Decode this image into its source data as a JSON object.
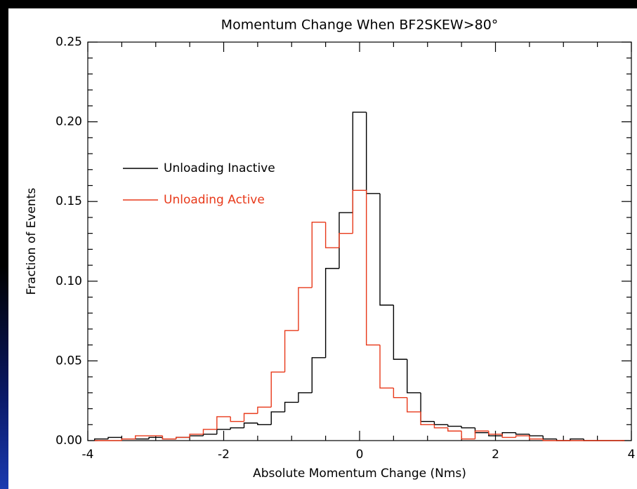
{
  "chart_data": {
    "type": "histogram",
    "title": "Momentum Change When BF2SKEW>80°",
    "xlabel": "Absolute Momentum Change (Nms)",
    "ylabel": "Fraction of Events",
    "bins": [
      -3.9,
      -3.7,
      -3.5,
      -3.3,
      -3.1,
      -2.9,
      -2.7,
      -2.5,
      -2.3,
      -2.1,
      -1.9,
      -1.7,
      -1.5,
      -1.3,
      -1.1,
      -0.9,
      -0.7,
      -0.5,
      -0.3,
      -0.1,
      0.1,
      0.3,
      0.5,
      0.7,
      0.9,
      1.1,
      1.3,
      1.5,
      1.7,
      1.9,
      2.1,
      2.3,
      2.5,
      2.7,
      2.9,
      3.1,
      3.3,
      3.5,
      3.7,
      3.9
    ],
    "series": [
      {
        "name": "Unloading Inactive",
        "color": "#000000",
        "values": [
          0.001,
          0.002,
          0.001,
          0.001,
          0.002,
          0.001,
          0.002,
          0.003,
          0.004,
          0.007,
          0.008,
          0.011,
          0.01,
          0.018,
          0.024,
          0.03,
          0.052,
          0.108,
          0.143,
          0.206,
          0.155,
          0.085,
          0.051,
          0.03,
          0.012,
          0.01,
          0.009,
          0.008,
          0.005,
          0.003,
          0.005,
          0.004,
          0.003,
          0.001,
          0.0,
          0.001,
          0.0,
          0.0,
          0.0
        ]
      },
      {
        "name": "Unloading Active",
        "color": "#e8391a",
        "values": [
          0.0,
          0.0,
          0.001,
          0.003,
          0.003,
          0.001,
          0.002,
          0.004,
          0.007,
          0.015,
          0.012,
          0.017,
          0.021,
          0.043,
          0.069,
          0.096,
          0.137,
          0.121,
          0.13,
          0.157,
          0.06,
          0.033,
          0.027,
          0.018,
          0.01,
          0.008,
          0.006,
          0.001,
          0.006,
          0.004,
          0.002,
          0.003,
          0.001,
          0.0,
          0.0,
          0.0,
          0.0,
          0.0,
          0.0
        ]
      }
    ],
    "xlim": [
      -4,
      4
    ],
    "xticks": [
      -4,
      -2,
      0,
      2,
      4
    ],
    "ylim": [
      0,
      0.25
    ],
    "yticks": [
      {
        "value": 0,
        "label": "0.00"
      },
      0.05,
      {
        "value": 0.1,
        "label": "0.10"
      },
      0.15,
      {
        "value": 0.2,
        "label": "0.20"
      },
      0.25
    ],
    "legend": "upper left"
  }
}
